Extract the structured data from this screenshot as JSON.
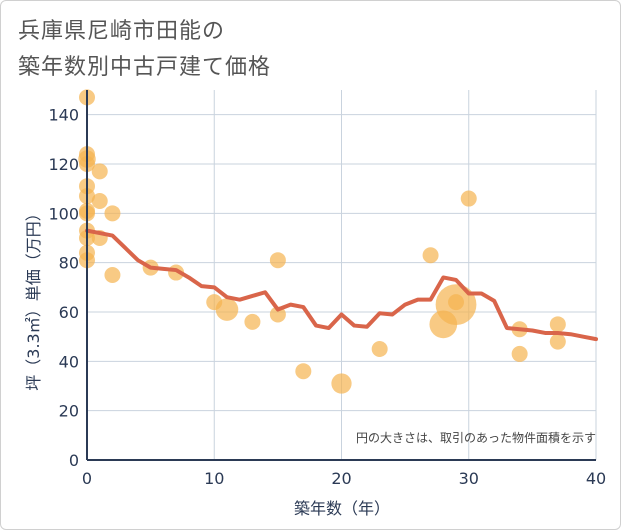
{
  "title_line1": "兵庫県尼崎市田能の",
  "title_line2": "築年数別中古戸建て価格",
  "chart_data": {
    "type": "scatter",
    "xlabel": "築年数（年）",
    "ylabel": "坪（3.3㎡）単価（万円）",
    "xlim": [
      0,
      40
    ],
    "ylim": [
      0,
      150
    ],
    "x_ticks": [
      0,
      10,
      20,
      30,
      40
    ],
    "y_ticks": [
      0,
      20,
      40,
      60,
      80,
      100,
      120,
      140
    ],
    "note": "円の大きさは、取引のあった物件面積を示す",
    "grid": true,
    "colors": {
      "bubble": "#f5b350",
      "line": "#d9654a",
      "grid": "#c9d3de",
      "axis": "#2b3a55"
    },
    "bubbles": [
      {
        "x": 0,
        "y": 147,
        "s": 1
      },
      {
        "x": 0,
        "y": 124,
        "s": 1
      },
      {
        "x": 0,
        "y": 122,
        "s": 1.2
      },
      {
        "x": 0,
        "y": 120,
        "s": 1
      },
      {
        "x": 0,
        "y": 111,
        "s": 1
      },
      {
        "x": 0,
        "y": 107,
        "s": 1
      },
      {
        "x": 0,
        "y": 101,
        "s": 1
      },
      {
        "x": 0,
        "y": 100,
        "s": 1
      },
      {
        "x": 0,
        "y": 93,
        "s": 1
      },
      {
        "x": 0,
        "y": 90,
        "s": 1
      },
      {
        "x": 0,
        "y": 84,
        "s": 1
      },
      {
        "x": 0,
        "y": 81,
        "s": 1
      },
      {
        "x": 1,
        "y": 117,
        "s": 1
      },
      {
        "x": 1,
        "y": 105,
        "s": 1
      },
      {
        "x": 1,
        "y": 90,
        "s": 1
      },
      {
        "x": 2,
        "y": 100,
        "s": 1
      },
      {
        "x": 2,
        "y": 75,
        "s": 1
      },
      {
        "x": 5,
        "y": 78,
        "s": 1
      },
      {
        "x": 7,
        "y": 76,
        "s": 1
      },
      {
        "x": 10,
        "y": 64,
        "s": 1
      },
      {
        "x": 11,
        "y": 61,
        "s": 2
      },
      {
        "x": 13,
        "y": 56,
        "s": 1
      },
      {
        "x": 15,
        "y": 81,
        "s": 1
      },
      {
        "x": 15,
        "y": 59,
        "s": 1
      },
      {
        "x": 17,
        "y": 36,
        "s": 1
      },
      {
        "x": 20,
        "y": 31,
        "s": 1.6
      },
      {
        "x": 23,
        "y": 45,
        "s": 1
      },
      {
        "x": 27,
        "y": 83,
        "s": 1
      },
      {
        "x": 28,
        "y": 55,
        "s": 3
      },
      {
        "x": 29,
        "y": 63,
        "s": 6.5
      },
      {
        "x": 29,
        "y": 64,
        "s": 1
      },
      {
        "x": 30,
        "y": 106,
        "s": 1
      },
      {
        "x": 34,
        "y": 53,
        "s": 1
      },
      {
        "x": 34,
        "y": 43,
        "s": 1
      },
      {
        "x": 37,
        "y": 55,
        "s": 1
      },
      {
        "x": 37,
        "y": 48,
        "s": 1
      }
    ],
    "trend": [
      [
        0,
        93
      ],
      [
        1,
        92
      ],
      [
        2,
        91
      ],
      [
        3,
        86
      ],
      [
        4,
        81
      ],
      [
        5,
        78
      ],
      [
        6,
        77.5
      ],
      [
        7,
        77
      ],
      [
        8,
        74
      ],
      [
        9,
        70.5
      ],
      [
        10,
        70
      ],
      [
        11,
        66
      ],
      [
        12,
        65
      ],
      [
        13,
        66.5
      ],
      [
        14,
        68
      ],
      [
        15,
        61
      ],
      [
        16,
        63
      ],
      [
        17,
        62
      ],
      [
        18,
        54.5
      ],
      [
        19,
        53.5
      ],
      [
        20,
        59
      ],
      [
        21,
        54.5
      ],
      [
        22,
        54
      ],
      [
        23,
        59.5
      ],
      [
        24,
        59
      ],
      [
        25,
        63
      ],
      [
        26,
        65
      ],
      [
        27,
        65
      ],
      [
        28,
        74
      ],
      [
        29,
        73
      ],
      [
        30,
        67.5
      ],
      [
        31,
        67.5
      ],
      [
        32,
        64.5
      ],
      [
        33,
        53.5
      ],
      [
        34,
        53
      ],
      [
        35,
        52.5
      ],
      [
        36,
        51.5
      ],
      [
        37,
        51.5
      ],
      [
        38,
        51
      ],
      [
        39,
        50
      ],
      [
        40,
        49
      ]
    ]
  }
}
